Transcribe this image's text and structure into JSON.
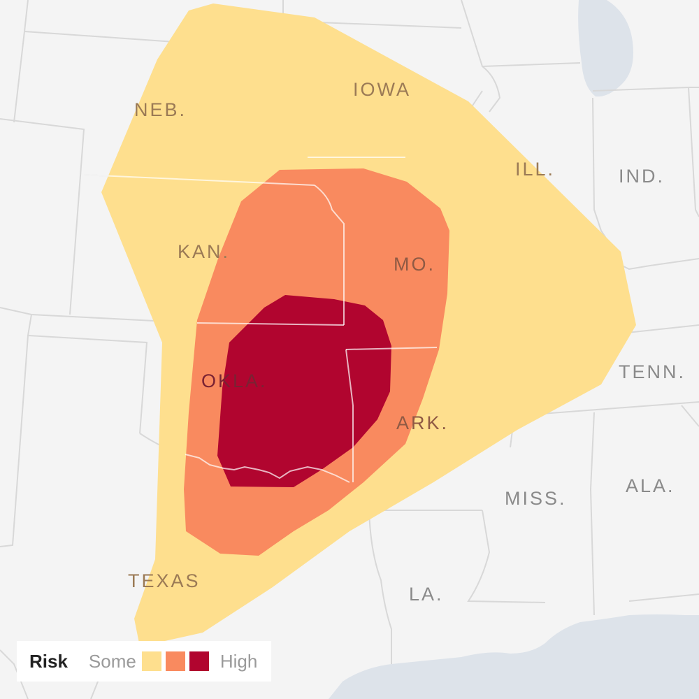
{
  "map": {
    "state_labels": [
      "NEB.",
      "IOWA",
      "ILL.",
      "IND.",
      "KAN.",
      "MO.",
      "OKLA.",
      "TENN.",
      "ARK.",
      "MISS.",
      "ALA.",
      "TEXAS",
      "LA."
    ]
  },
  "legend": {
    "title": "Risk",
    "low_label": "Some",
    "high_label": "High",
    "colors": [
      "#fedf8e",
      "#f98a5f",
      "#b1052f"
    ]
  },
  "colors": {
    "background": "#f4f4f4",
    "state_border": "#d8d8d8",
    "water": "#dde3ea",
    "risk_some": "#fedf8e",
    "risk_moderate": "#f98a5f",
    "risk_high": "#b1052f"
  }
}
